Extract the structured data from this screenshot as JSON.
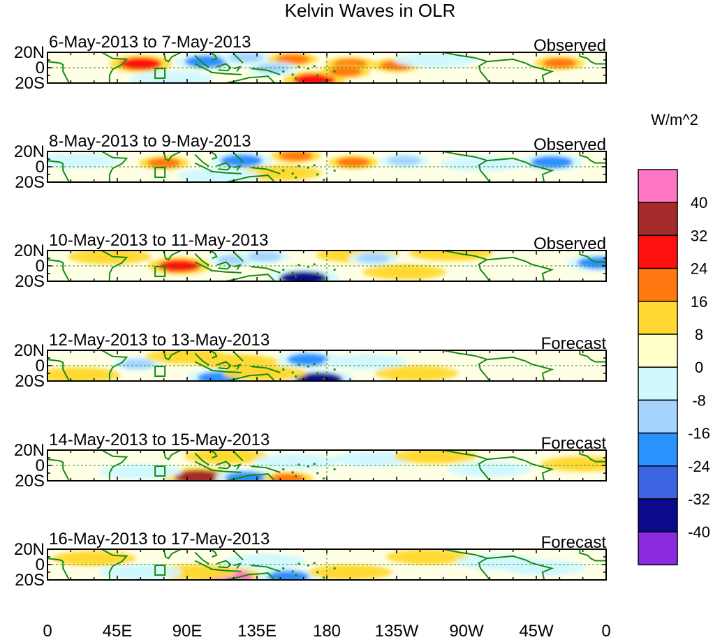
{
  "chart_data": {
    "type": "heatmap",
    "title": "Kelvin Waves in OLR",
    "colorbar": {
      "units": "W/m^2",
      "levels": [
        40,
        32,
        24,
        16,
        8,
        0,
        -8,
        -16,
        -24,
        -32,
        -40
      ],
      "colors": [
        "#ff77c4",
        "#a52a2a",
        "#ff1010",
        "#ff7810",
        "#ffd932",
        "#ffffc8",
        "#d2f8ff",
        "#a6d4ff",
        "#2a92ff",
        "#3c64e0",
        "#0a0a8a",
        "#8a2be2"
      ]
    },
    "x_ticks": [
      {
        "lon": 0,
        "label": "0"
      },
      {
        "lon": 45,
        "label": "45E"
      },
      {
        "lon": 90,
        "label": "90E"
      },
      {
        "lon": 135,
        "label": "135E"
      },
      {
        "lon": 180,
        "label": "180"
      },
      {
        "lon": 225,
        "label": "135W"
      },
      {
        "lon": 270,
        "label": "90W"
      },
      {
        "lon": 315,
        "label": "45W"
      },
      {
        "lon": 360,
        "label": "0"
      }
    ],
    "y_ticks": [
      {
        "lat": 20,
        "label": "20N"
      },
      {
        "lat": 0,
        "label": "0"
      },
      {
        "lat": -20,
        "label": "20S"
      }
    ],
    "xlim": [
      0,
      360
    ],
    "ylim": [
      -20,
      20
    ],
    "panels": [
      {
        "date_range": "6-May-2013 to 7-May-2013",
        "status": "Observed",
        "anomalies": [
          {
            "lon": 60,
            "lat": 5,
            "value": 24
          },
          {
            "lon": 102,
            "lat": 8,
            "value": -24
          },
          {
            "lon": 128,
            "lat": 13,
            "value": -16
          },
          {
            "lon": 158,
            "lat": 11,
            "value": 16
          },
          {
            "lon": 145,
            "lat": -1,
            "value": -16
          },
          {
            "lon": 172,
            "lat": -16,
            "value": 24
          },
          {
            "lon": 195,
            "lat": 5,
            "value": 16
          },
          {
            "lon": 192,
            "lat": -5,
            "value": 16
          },
          {
            "lon": 225,
            "lat": 3,
            "value": 16
          },
          {
            "lon": 80,
            "lat": -14,
            "value": -8
          },
          {
            "lon": 250,
            "lat": 10,
            "value": -8
          },
          {
            "lon": 330,
            "lat": 6,
            "value": 16
          }
        ]
      },
      {
        "date_range": "8-May-2013 to 9-May-2013",
        "status": "Observed",
        "anomalies": [
          {
            "lon": 75,
            "lat": 5,
            "value": 16
          },
          {
            "lon": 125,
            "lat": 8,
            "value": -24
          },
          {
            "lon": 160,
            "lat": 14,
            "value": 16
          },
          {
            "lon": 197,
            "lat": 6,
            "value": 16
          },
          {
            "lon": 230,
            "lat": 8,
            "value": -16
          },
          {
            "lon": 325,
            "lat": 6,
            "value": -24
          },
          {
            "lon": 20,
            "lat": 8,
            "value": -8
          },
          {
            "lon": 150,
            "lat": -8,
            "value": 8
          },
          {
            "lon": 110,
            "lat": -12,
            "value": -8
          },
          {
            "lon": 280,
            "lat": 4,
            "value": -8
          }
        ]
      },
      {
        "date_range": "10-May-2013 to 11-May-2013",
        "status": "Observed",
        "anomalies": [
          {
            "lon": 85,
            "lat": 0,
            "value": 24
          },
          {
            "lon": 120,
            "lat": 8,
            "value": -16
          },
          {
            "lon": 140,
            "lat": 12,
            "value": -16
          },
          {
            "lon": 165,
            "lat": -16,
            "value": -40
          },
          {
            "lon": 200,
            "lat": 14,
            "value": 8
          },
          {
            "lon": 210,
            "lat": 10,
            "value": -16
          },
          {
            "lon": 260,
            "lat": 16,
            "value": 8
          },
          {
            "lon": 355,
            "lat": 4,
            "value": -24
          },
          {
            "lon": 40,
            "lat": 12,
            "value": 8
          },
          {
            "lon": 230,
            "lat": -8,
            "value": 8
          }
        ]
      },
      {
        "date_range": "12-May-2013 to 13-May-2013",
        "status": "Forecast",
        "anomalies": [
          {
            "lon": 58,
            "lat": 2,
            "value": -16
          },
          {
            "lon": 110,
            "lat": -16,
            "value": -24
          },
          {
            "lon": 175,
            "lat": -18,
            "value": -40
          },
          {
            "lon": 168,
            "lat": 8,
            "value": -24
          },
          {
            "lon": 122,
            "lat": 5,
            "value": 8
          },
          {
            "lon": 140,
            "lat": -10,
            "value": 8
          },
          {
            "lon": 205,
            "lat": 5,
            "value": -8
          },
          {
            "lon": 238,
            "lat": -10,
            "value": 8
          },
          {
            "lon": 90,
            "lat": 12,
            "value": 8
          },
          {
            "lon": 20,
            "lat": -12,
            "value": 8
          }
        ]
      },
      {
        "date_range": "14-May-2013 to 15-May-2013",
        "status": "Forecast",
        "anomalies": [
          {
            "lon": 97,
            "lat": -15,
            "value": 32
          },
          {
            "lon": 128,
            "lat": -16,
            "value": -24
          },
          {
            "lon": 155,
            "lat": -17,
            "value": 16
          },
          {
            "lon": 115,
            "lat": 12,
            "value": 8
          },
          {
            "lon": 160,
            "lat": 5,
            "value": -8
          },
          {
            "lon": 210,
            "lat": 8,
            "value": -8
          },
          {
            "lon": 250,
            "lat": 12,
            "value": 8
          },
          {
            "lon": 345,
            "lat": 2,
            "value": 8
          },
          {
            "lon": 60,
            "lat": -8,
            "value": -8
          },
          {
            "lon": 285,
            "lat": -5,
            "value": -8
          }
        ]
      },
      {
        "date_range": "16-May-2013 to 17-May-2013",
        "status": "Forecast",
        "anomalies": [
          {
            "lon": 117,
            "lat": -16,
            "value": 40
          },
          {
            "lon": 95,
            "lat": -10,
            "value": 8
          },
          {
            "lon": 155,
            "lat": -16,
            "value": -24
          },
          {
            "lon": 140,
            "lat": 4,
            "value": -8
          },
          {
            "lon": 245,
            "lat": 10,
            "value": 8
          },
          {
            "lon": 290,
            "lat": 3,
            "value": -8
          },
          {
            "lon": 30,
            "lat": 8,
            "value": 8
          },
          {
            "lon": 320,
            "lat": -4,
            "value": -8
          },
          {
            "lon": 195,
            "lat": -10,
            "value": 8
          },
          {
            "lon": 60,
            "lat": -10,
            "value": -8
          }
        ]
      }
    ]
  }
}
